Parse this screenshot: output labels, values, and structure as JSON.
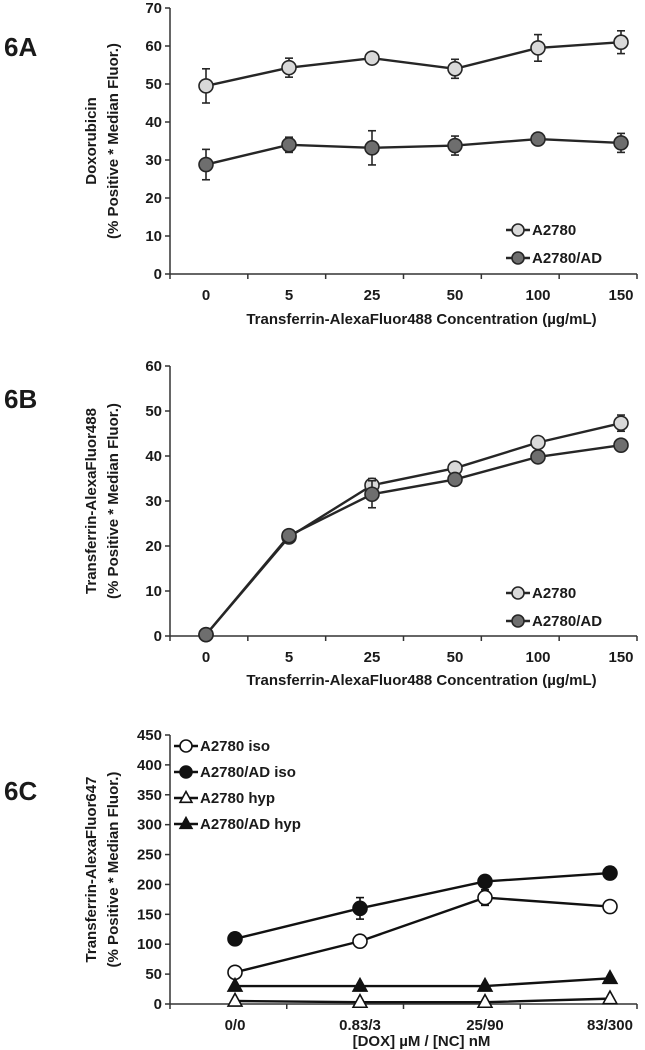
{
  "figure": {
    "panels": [
      {
        "label": "6A"
      },
      {
        "label": "6B"
      },
      {
        "label": "6C"
      }
    ]
  },
  "chart_data": [
    {
      "type": "line",
      "panel": "6A",
      "categories": [
        "0",
        "5",
        "25",
        "50",
        "100",
        "150"
      ],
      "xlabel": "Transferrin-AlexaFluor488 Concentration (µg/mL)",
      "ylabel": [
        "Doxorubicin",
        "(% Positive * Median Fluor.)"
      ],
      "ylim": [
        0,
        70
      ],
      "yticks": [
        0,
        10,
        20,
        30,
        40,
        50,
        60,
        70
      ],
      "legend_position": "bottom-right",
      "series": [
        {
          "name": "A2780",
          "marker": "circle",
          "fill": "#d9d9d9",
          "color": "#262626",
          "values": [
            49.5,
            54.3,
            56.8,
            54.0,
            59.5,
            61.0
          ],
          "errors": [
            4.5,
            2.5,
            1.5,
            2.5,
            3.5,
            3.0
          ]
        },
        {
          "name": "A2780/AD",
          "marker": "circle",
          "fill": "#6e6e6e",
          "color": "#262626",
          "values": [
            28.8,
            34.0,
            33.2,
            33.8,
            35.5,
            34.5
          ],
          "errors": [
            4.0,
            2.0,
            4.5,
            2.5,
            1.5,
            2.5
          ]
        }
      ]
    },
    {
      "type": "line",
      "panel": "6B",
      "categories": [
        "0",
        "5",
        "25",
        "50",
        "100",
        "150"
      ],
      "xlabel": "Transferrin-AlexaFluor488 Concentration (µg/mL)",
      "ylabel": [
        "Transferrin-AlexaFluor488",
        "(% Positive * Median Fluor.)"
      ],
      "ylim": [
        0,
        60
      ],
      "yticks": [
        0,
        10,
        20,
        30,
        40,
        50,
        60
      ],
      "legend_position": "bottom-right",
      "series": [
        {
          "name": "A2780",
          "marker": "circle",
          "fill": "#d9d9d9",
          "color": "#262626",
          "values": [
            0.3,
            22.0,
            33.5,
            37.3,
            43.0,
            47.3
          ],
          "errors": [
            0.3,
            1.0,
            1.5,
            1.0,
            1.0,
            1.8
          ]
        },
        {
          "name": "A2780/AD",
          "marker": "circle",
          "fill": "#6e6e6e",
          "color": "#262626",
          "values": [
            0.3,
            22.3,
            31.5,
            34.8,
            39.8,
            42.4
          ],
          "errors": [
            0.3,
            1.0,
            3.0,
            1.0,
            1.0,
            1.0
          ]
        }
      ]
    },
    {
      "type": "line",
      "panel": "6C",
      "categories": [
        "0/0",
        "0.83/3",
        "25/90",
        "83/300"
      ],
      "xlabel": "[DOX] µM / [NC] nM",
      "ylabel": [
        "Transferrin-AlexaFluor647",
        "(% Positive * Median Fluor.)"
      ],
      "ylim": [
        0,
        450
      ],
      "yticks": [
        0,
        50,
        100,
        150,
        200,
        250,
        300,
        350,
        400,
        450
      ],
      "legend_position": "top-left",
      "series": [
        {
          "name": "A2780 iso",
          "marker": "circle",
          "fill": "#ffffff",
          "color": "#111111",
          "values": [
            53,
            105,
            178,
            163
          ],
          "errors": [
            0,
            0,
            13,
            0
          ]
        },
        {
          "name": "A2780/AD iso",
          "marker": "circle",
          "fill": "#111111",
          "color": "#111111",
          "values": [
            109,
            160,
            205,
            219
          ],
          "errors": [
            0,
            18,
            0,
            10
          ]
        },
        {
          "name": "A2780 hyp",
          "marker": "triangle",
          "fill": "#ffffff",
          "color": "#111111",
          "values": [
            5,
            3,
            3,
            9
          ],
          "errors": [
            0,
            0,
            0,
            0
          ]
        },
        {
          "name": "A2780/AD hyp",
          "marker": "triangle",
          "fill": "#111111",
          "color": "#111111",
          "values": [
            30,
            30,
            30,
            43
          ],
          "errors": [
            0,
            0,
            0,
            0
          ]
        }
      ]
    }
  ]
}
